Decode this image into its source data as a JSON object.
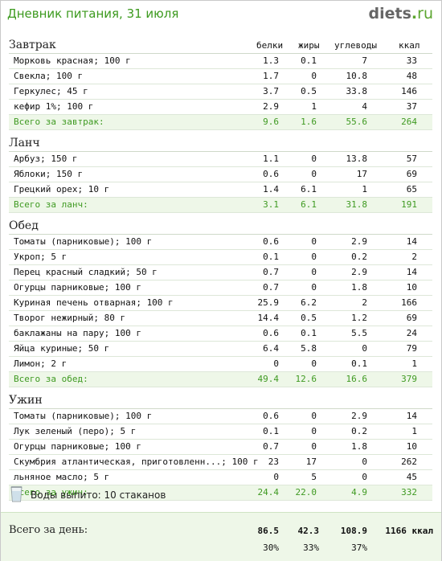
{
  "header": {
    "title": "Дневник питания, 31 июля",
    "logo_main": "diets",
    "logo_dot": ".",
    "logo_tld": "ru"
  },
  "columns": {
    "protein": "белки",
    "fat": "жиры",
    "carbs": "углеводы",
    "kcal": "ккал"
  },
  "meals": [
    {
      "name": "Завтрак",
      "items": [
        {
          "name": "Морковь красная; 100 г",
          "p": "1.3",
          "f": "0.1",
          "c": "7",
          "k": "33"
        },
        {
          "name": "Свекла; 100 г",
          "p": "1.7",
          "f": "0",
          "c": "10.8",
          "k": "48"
        },
        {
          "name": "Геркулес; 45 г",
          "p": "3.7",
          "f": "0.5",
          "c": "33.8",
          "k": "146"
        },
        {
          "name": "кефир 1%; 100 г",
          "p": "2.9",
          "f": "1",
          "c": "4",
          "k": "37"
        }
      ],
      "total": {
        "name": "Всего за завтрак:",
        "p": "9.6",
        "f": "1.6",
        "c": "55.6",
        "k": "264"
      }
    },
    {
      "name": "Ланч",
      "items": [
        {
          "name": "Арбуз; 150 г",
          "p": "1.1",
          "f": "0",
          "c": "13.8",
          "k": "57"
        },
        {
          "name": "Яблоки; 150 г",
          "p": "0.6",
          "f": "0",
          "c": "17",
          "k": "69"
        },
        {
          "name": "Грецкий орех; 10 г",
          "p": "1.4",
          "f": "6.1",
          "c": "1",
          "k": "65"
        }
      ],
      "total": {
        "name": "Всего за ланч:",
        "p": "3.1",
        "f": "6.1",
        "c": "31.8",
        "k": "191"
      }
    },
    {
      "name": "Обед",
      "items": [
        {
          "name": "Томаты (парниковые); 100 г",
          "p": "0.6",
          "f": "0",
          "c": "2.9",
          "k": "14"
        },
        {
          "name": "Укроп; 5 г",
          "p": "0.1",
          "f": "0",
          "c": "0.2",
          "k": "2"
        },
        {
          "name": "Перец красный сладкий; 50 г",
          "p": "0.7",
          "f": "0",
          "c": "2.9",
          "k": "14"
        },
        {
          "name": "Огурцы парниковые; 100 г",
          "p": "0.7",
          "f": "0",
          "c": "1.8",
          "k": "10"
        },
        {
          "name": "Куриная печень отварная; 100 г",
          "p": "25.9",
          "f": "6.2",
          "c": "2",
          "k": "166"
        },
        {
          "name": "Творог нежирный; 80 г",
          "p": "14.4",
          "f": "0.5",
          "c": "1.2",
          "k": "69"
        },
        {
          "name": "баклажаны на пару; 100 г",
          "p": "0.6",
          "f": "0.1",
          "c": "5.5",
          "k": "24"
        },
        {
          "name": "Яйца куриные; 50 г",
          "p": "6.4",
          "f": "5.8",
          "c": "0",
          "k": "79"
        },
        {
          "name": "Лимон; 2 г",
          "p": "0",
          "f": "0",
          "c": "0.1",
          "k": "1"
        }
      ],
      "total": {
        "name": "Всего за обед:",
        "p": "49.4",
        "f": "12.6",
        "c": "16.6",
        "k": "379"
      }
    },
    {
      "name": "Ужин",
      "items": [
        {
          "name": "Томаты (парниковые); 100 г",
          "p": "0.6",
          "f": "0",
          "c": "2.9",
          "k": "14"
        },
        {
          "name": "Лук зеленый (перо); 5 г",
          "p": "0.1",
          "f": "0",
          "c": "0.2",
          "k": "1"
        },
        {
          "name": "Огурцы парниковые; 100 г",
          "p": "0.7",
          "f": "0",
          "c": "1.8",
          "k": "10"
        },
        {
          "name": "Скумбрия атлантическая, приготовленн...; 100 г",
          "p": "23",
          "f": "17",
          "c": "0",
          "k": "262"
        },
        {
          "name": "льняное масло; 5 г",
          "p": "0",
          "f": "5",
          "c": "0",
          "k": "45"
        }
      ],
      "total": {
        "name": "Всего за ужин:",
        "p": "24.4",
        "f": "22.0",
        "c": "4.9",
        "k": "332"
      }
    }
  ],
  "water": {
    "text": "Воды выпито: 10 стаканов",
    "icon": "glass-icon"
  },
  "day_total": {
    "label": "Всего за день:",
    "protein": "86.5",
    "fat": "42.3",
    "carbs": "108.9",
    "kcal": "1166 ккал",
    "protein_pct": "30%",
    "fat_pct": "33%",
    "carbs_pct": "37%"
  },
  "colors": {
    "accent": "#3c9a1e",
    "total_bg": "#eef7e8"
  }
}
